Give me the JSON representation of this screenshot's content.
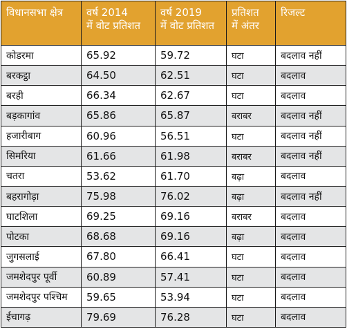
{
  "headers": {
    "constituency": "विधानसभा क्षेत्र",
    "vote_2014_line1": "वर्ष 2014",
    "vote_2014_line2": "में वोट प्रतिशत",
    "vote_2019_line1": "वर्ष 2019",
    "vote_2019_line2": "में वोट प्रतिशत",
    "difference_line1": "प्रतिशत",
    "difference_line2": "में अंतर",
    "result": "रिजल्ट"
  },
  "rows": [
    {
      "name": "कोडरमा",
      "v2014": "65.92",
      "v2019": "59.72",
      "diff": "घटा",
      "result": "बदलाव नहीं"
    },
    {
      "name": "बरकट्ठा",
      "v2014": "64.50",
      "v2019": "62.51",
      "diff": "घटा",
      "result": "बदलाव"
    },
    {
      "name": "बरही",
      "v2014": "66.34",
      "v2019": "62.67",
      "diff": "घटा",
      "result": "बदलाव"
    },
    {
      "name": "बड़कागांव",
      "v2014": "65.86",
      "v2019": "65.87",
      "diff": "बराबर",
      "result": "बदलाव नहीं"
    },
    {
      "name": "हजारीबाग",
      "v2014": "60.96",
      "v2019": "56.51",
      "diff": "घटा",
      "result": "बदलाव नहीं"
    },
    {
      "name": "सिमरिया",
      "v2014": "61.66",
      "v2019": "61.98",
      "diff": "बराबर",
      "result": "बदलाव नहीं"
    },
    {
      "name": "चतरा",
      "v2014": "53.62",
      "v2019": "61.70",
      "diff": "बढ़ा",
      "result": "बदलाव"
    },
    {
      "name": "बहरागोड़ा",
      "v2014": "75.98",
      "v2019": "76.02",
      "diff": "बढ़ा",
      "result": "बदलाव नहीं"
    },
    {
      "name": "घाटशिला",
      "v2014": "69.25",
      "v2019": "69.16",
      "diff": "बराबर",
      "result": "बदलाव"
    },
    {
      "name": "पोटका",
      "v2014": "68.68",
      "v2019": "69.16",
      "diff": "बढ़ा",
      "result": "बदलाव"
    },
    {
      "name": "जुगसलाई",
      "v2014": "67.80",
      "v2019": "66.41",
      "diff": "घटा",
      "result": "बदलाव"
    },
    {
      "name": "जमशेदपुर पूर्वी",
      "v2014": "60.89",
      "v2019": "57.41",
      "diff": "घटा",
      "result": "बदलाव"
    },
    {
      "name": "जमशेदपुर पश्चिम",
      "v2014": "59.65",
      "v2019": "53.94",
      "diff": "घटा",
      "result": "बदलाव"
    },
    {
      "name": "ईचागढ़",
      "v2014": "79.69",
      "v2019": "76.28",
      "diff": "घटा",
      "result": "बदलाव"
    }
  ],
  "colors": {
    "header_bg": "#e2a22f",
    "header_text": "#ffffff",
    "shaded_row": "#e4e5e6",
    "border": "#1a1a1a"
  }
}
